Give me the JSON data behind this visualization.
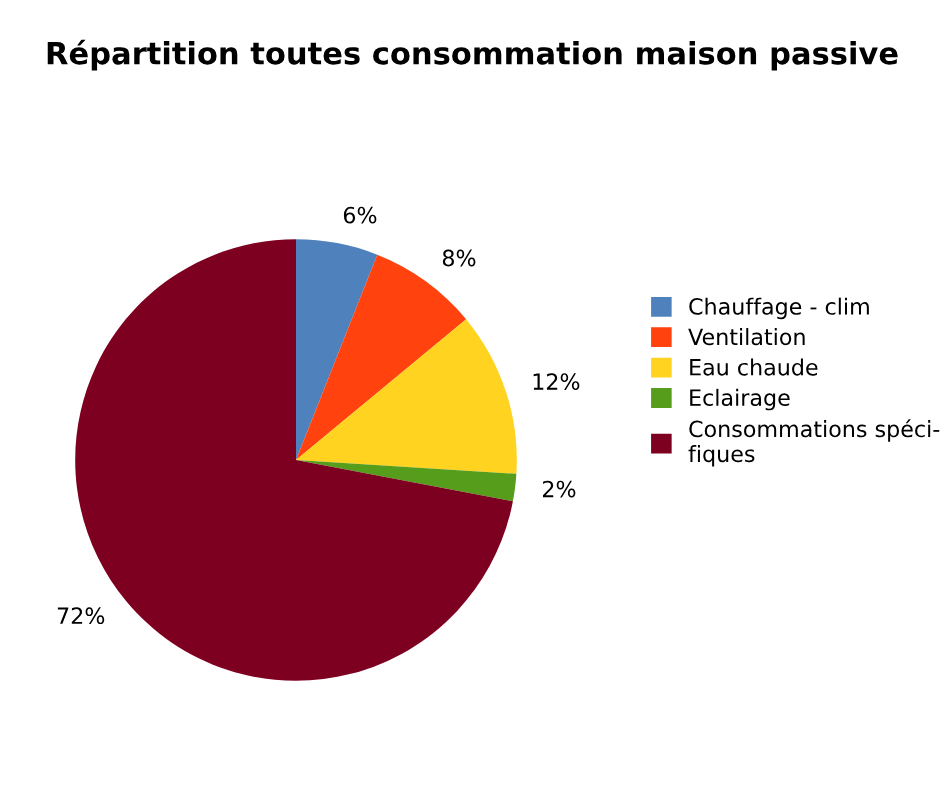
{
  "chart_data": {
    "type": "pie",
    "title": "Répartition toutes consommation maison passive",
    "categories": [
      "Chauffage - clim",
      "Ventilation",
      "Eau chaude",
      "Eclairage",
      "Consommations spéci-\nfiques"
    ],
    "values": [
      6,
      8,
      12,
      2,
      72
    ],
    "colors": [
      "#4f81bd",
      "#ff420e",
      "#ffd320",
      "#579d1c",
      "#7e0021"
    ],
    "value_labels": [
      "6%",
      "8%",
      "12%",
      "2%",
      "72%"
    ],
    "legend": "right"
  }
}
